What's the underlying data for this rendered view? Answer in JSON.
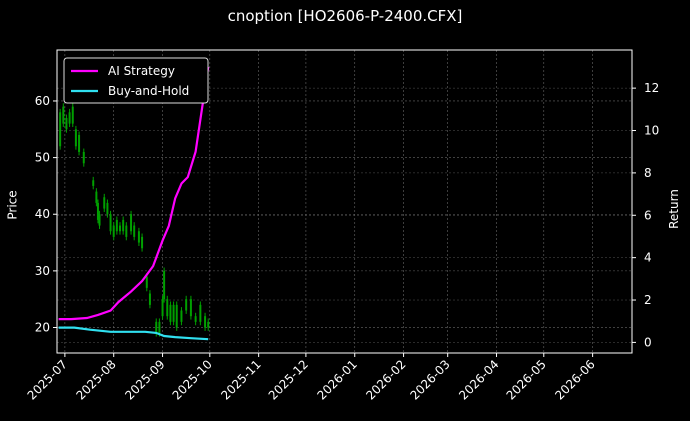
{
  "chart_data": {
    "type": "line",
    "title": "cnoption [HO2606-P-2400.CFX]",
    "xlabel": "",
    "ylabel_left": "Price",
    "ylabel_right": "Return",
    "x_ticks": [
      "2025-07",
      "2025-08",
      "2025-09",
      "2025-10",
      "2025-11",
      "2025-12",
      "2026-01",
      "2026-02",
      "2026-03",
      "2026-04",
      "2026-05",
      "2026-06"
    ],
    "x_range": [
      "2025-06-26",
      "2026-06-26"
    ],
    "ylim_left": [
      15.5,
      69
    ],
    "yticks_left": [
      20,
      30,
      40,
      50,
      60
    ],
    "ylim_right": [
      -0.5,
      13.8
    ],
    "yticks_right": [
      0,
      2,
      4,
      6,
      8,
      10,
      12
    ],
    "grid": true,
    "legend_position": "top-left",
    "background": "#000000",
    "colors": {
      "up": "#00a000",
      "down": "#e00000",
      "strategy": "#ff00ff",
      "buyhold": "#30e0f0"
    },
    "series": [
      {
        "name": "AI Strategy",
        "axis": "right",
        "points": [
          [
            "2025-06-27",
            1.1
          ],
          [
            "2025-07-05",
            1.1
          ],
          [
            "2025-07-15",
            1.15
          ],
          [
            "2025-07-22",
            1.3
          ],
          [
            "2025-07-30",
            1.5
          ],
          [
            "2025-08-04",
            1.9
          ],
          [
            "2025-08-12",
            2.4
          ],
          [
            "2025-08-19",
            2.9
          ],
          [
            "2025-08-26",
            3.6
          ],
          [
            "2025-09-01",
            4.8
          ],
          [
            "2025-09-05",
            5.5
          ],
          [
            "2025-09-09",
            6.8
          ],
          [
            "2025-09-13",
            7.5
          ],
          [
            "2025-09-17",
            7.8
          ],
          [
            "2025-09-22",
            9.0
          ],
          [
            "2025-09-26",
            11.0
          ],
          [
            "2025-09-30",
            13.0
          ]
        ]
      },
      {
        "name": "Buy-and-Hold",
        "axis": "right",
        "points": [
          [
            "2025-06-27",
            0.7
          ],
          [
            "2025-07-07",
            0.7
          ],
          [
            "2025-07-17",
            0.6
          ],
          [
            "2025-07-30",
            0.5
          ],
          [
            "2025-08-11",
            0.5
          ],
          [
            "2025-08-21",
            0.5
          ],
          [
            "2025-08-28",
            0.45
          ],
          [
            "2025-09-02",
            0.3
          ],
          [
            "2025-09-09",
            0.25
          ],
          [
            "2025-09-19",
            0.2
          ],
          [
            "2025-09-30",
            0.15
          ]
        ]
      }
    ],
    "candles": [
      [
        "2025-06-28",
        58,
        52
      ],
      [
        "2025-06-30",
        59,
        56
      ],
      [
        "2025-07-02",
        57,
        55
      ],
      [
        "2025-07-04",
        58,
        56
      ],
      [
        "2025-07-06",
        59,
        56
      ],
      [
        "2025-07-08",
        55,
        52
      ],
      [
        "2025-07-10",
        54,
        51
      ],
      [
        "2025-07-13",
        51,
        49
      ],
      [
        "2025-07-19",
        46,
        45
      ],
      [
        "2025-07-21",
        44,
        42
      ],
      [
        "2025-07-22",
        42,
        39
      ],
      [
        "2025-07-23",
        40,
        38
      ],
      [
        "2025-07-26",
        43,
        41
      ],
      [
        "2025-07-28",
        42,
        40
      ],
      [
        "2025-07-30",
        40,
        37
      ],
      [
        "2025-08-01",
        38,
        36
      ],
      [
        "2025-08-03",
        39,
        37
      ],
      [
        "2025-08-05",
        38,
        37
      ],
      [
        "2025-08-07",
        39,
        37
      ],
      [
        "2025-08-09",
        38,
        36
      ],
      [
        "2025-08-12",
        40,
        37
      ],
      [
        "2025-08-14",
        38,
        36
      ],
      [
        "2025-08-17",
        37,
        35
      ],
      [
        "2025-08-19",
        36,
        34
      ],
      [
        "2025-08-22",
        29,
        27
      ],
      [
        "2025-08-24",
        26,
        24
      ],
      [
        "2025-08-28",
        21,
        19
      ],
      [
        "2025-08-30",
        21,
        19
      ],
      [
        "2025-09-01",
        25,
        22
      ],
      [
        "2025-09-02",
        30,
        25
      ],
      [
        "2025-09-04",
        25,
        22
      ],
      [
        "2025-09-06",
        24,
        21
      ],
      [
        "2025-09-08",
        24,
        21
      ],
      [
        "2025-09-10",
        24,
        20
      ],
      [
        "2025-09-13",
        23,
        21
      ],
      [
        "2025-09-16",
        25,
        23
      ],
      [
        "2025-09-19",
        25,
        22
      ],
      [
        "2025-09-22",
        22,
        21
      ],
      [
        "2025-09-25",
        24,
        21
      ],
      [
        "2025-09-28",
        22,
        20
      ],
      [
        "2025-09-30",
        21,
        20
      ]
    ]
  }
}
